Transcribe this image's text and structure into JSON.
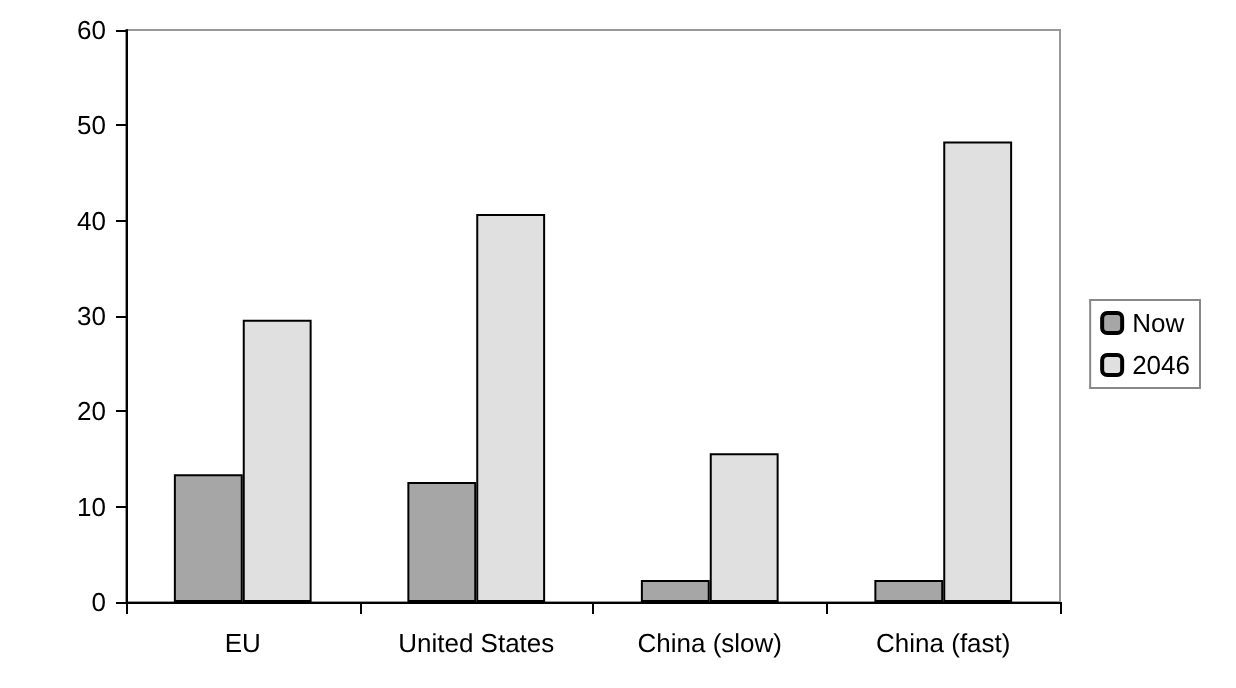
{
  "chart_data": {
    "type": "bar",
    "categories": [
      "EU",
      "United States",
      "China (slow)",
      "China (fast)"
    ],
    "series": [
      {
        "name": "Now",
        "color": "#a6a6a6",
        "values": [
          13.4,
          12.6,
          2.3,
          2.3
        ]
      },
      {
        "name": "2046",
        "color": "#e0e0e0",
        "values": [
          29.6,
          40.7,
          15.6,
          48.3
        ]
      }
    ],
    "ylim": [
      0,
      60
    ],
    "yticks": [
      0,
      10,
      20,
      30,
      40,
      50,
      60
    ],
    "grid": false,
    "legend": "right"
  }
}
